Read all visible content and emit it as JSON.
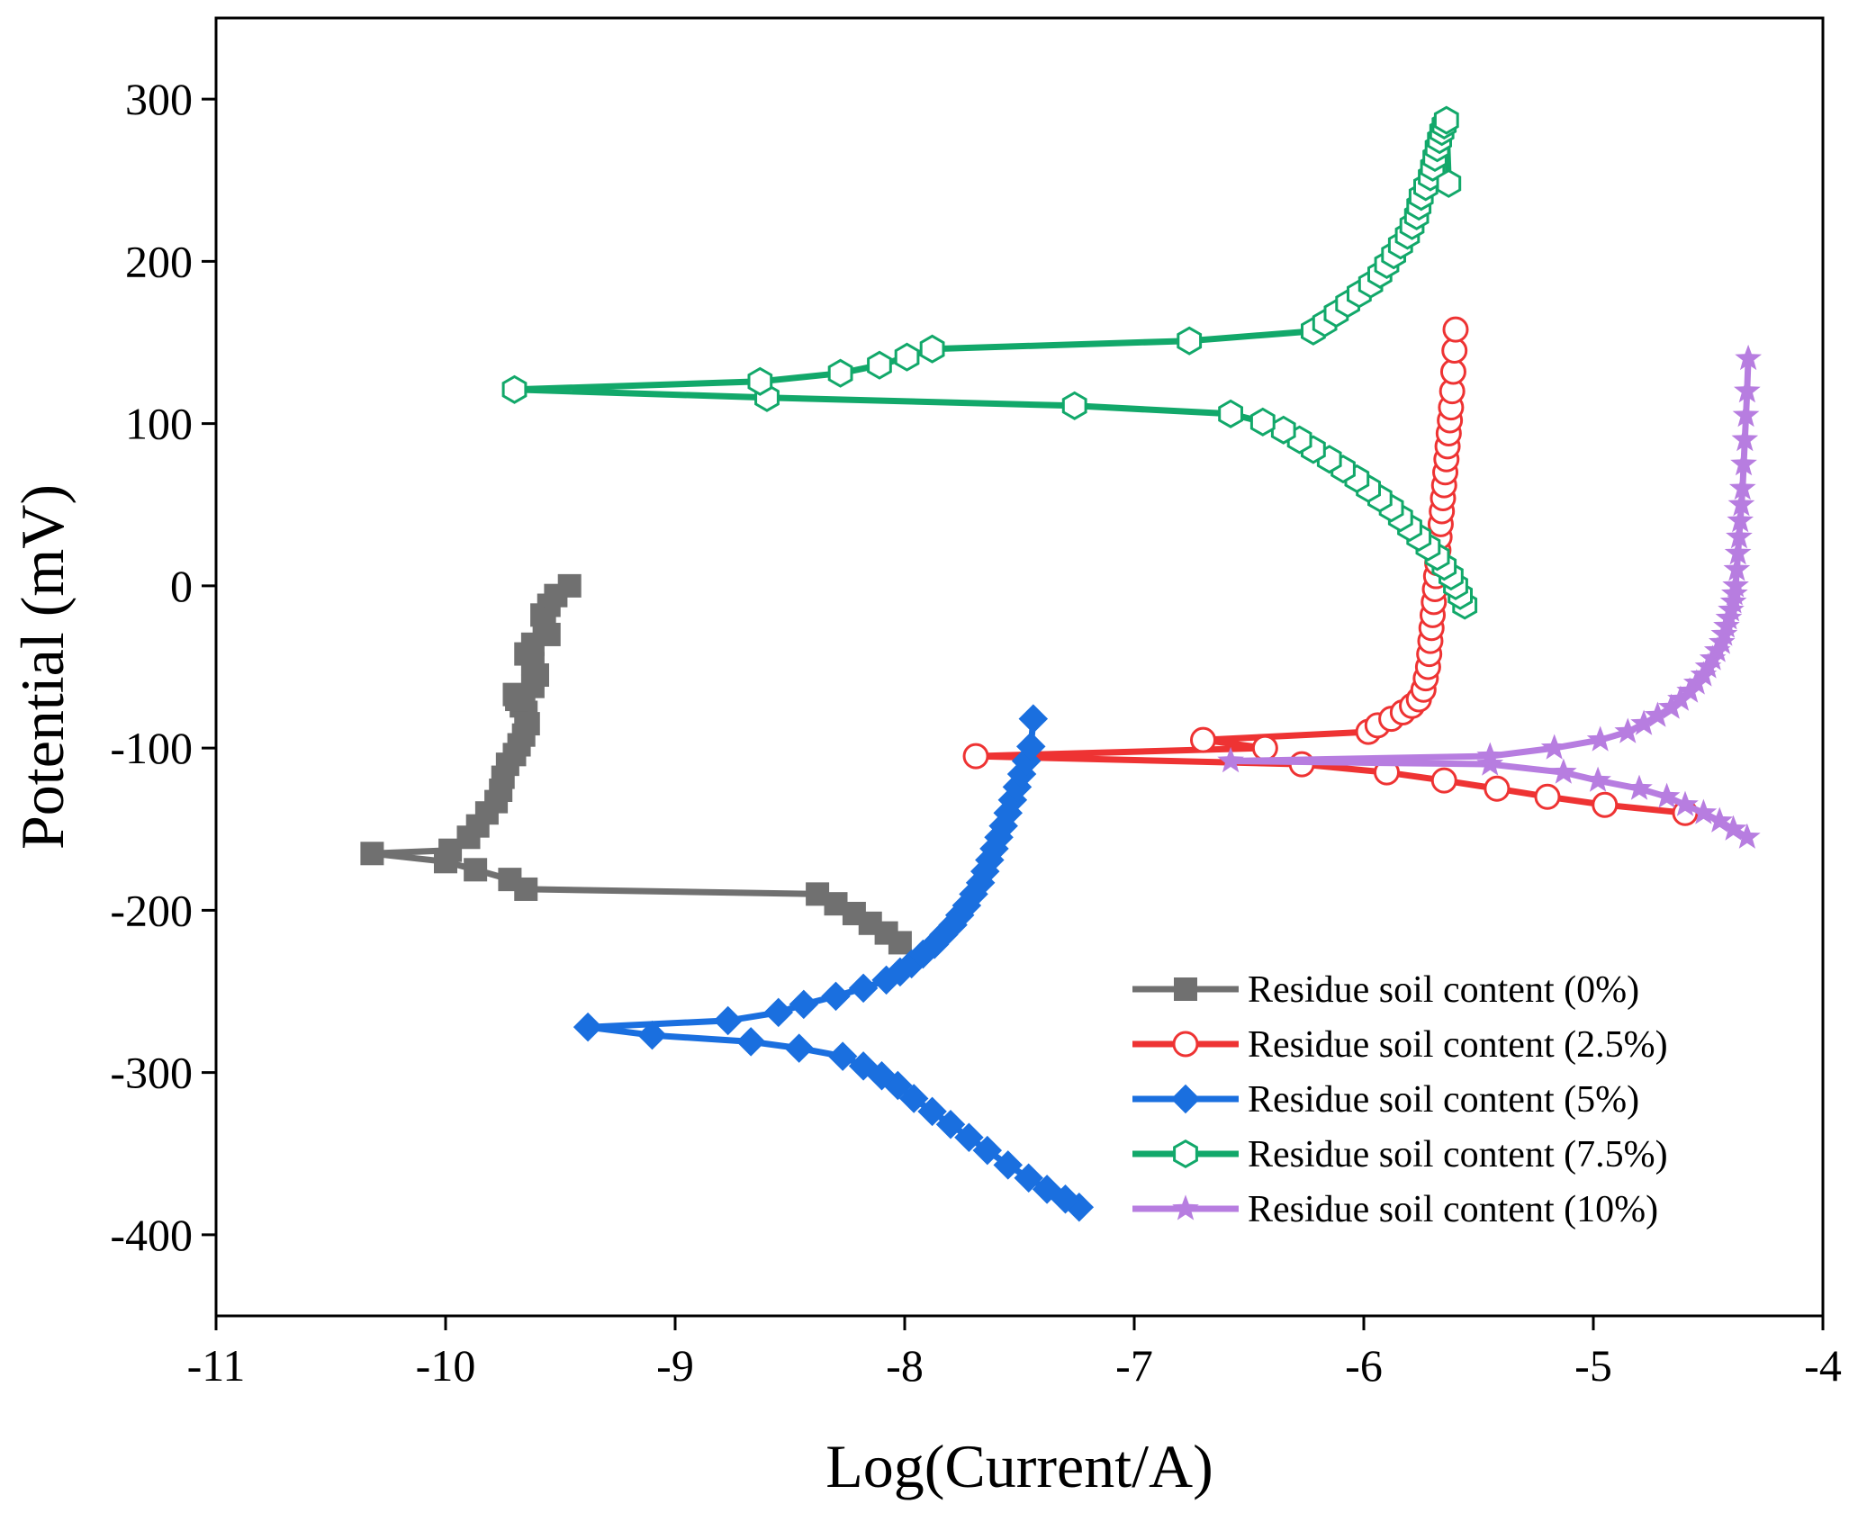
{
  "chart_data": {
    "type": "line",
    "title": "",
    "xlabel": "Log(Current/A)",
    "ylabel": "Potential (mV)",
    "xlim": [
      -11,
      -4
    ],
    "ylim": [
      -450,
      350
    ],
    "xticks": [
      -11,
      -10,
      -9,
      -8,
      -7,
      -6,
      -5,
      -4
    ],
    "yticks": [
      -400,
      -300,
      -200,
      -100,
      0,
      100,
      200,
      300
    ],
    "xtick_labels": [
      "-11",
      "-10",
      "-9",
      "-8",
      "-7",
      "-6",
      "-5",
      "-4"
    ],
    "ytick_labels": [
      "-400",
      "-300",
      "-200",
      "-100",
      "0",
      "100",
      "200",
      "300"
    ],
    "grid": false,
    "legend_position": "bottom-right",
    "series": [
      {
        "name": "Residue soil content (0%)",
        "color": "#707070",
        "marker": "square",
        "x": [
          -8.02,
          -8.08,
          -8.15,
          -8.22,
          -8.3,
          -8.38,
          -9.65,
          -9.72,
          -9.87,
          -10.0,
          -10.32,
          -9.98,
          -9.9,
          -9.86,
          -9.82,
          -9.78,
          -9.76,
          -9.75,
          -9.73,
          -9.7,
          -9.68,
          -9.66,
          -9.64,
          -9.65,
          -9.67,
          -9.69,
          -9.7,
          -9.66,
          -9.62,
          -9.6,
          -9.62,
          -9.65,
          -9.62,
          -9.55,
          -9.57,
          -9.58,
          -9.55,
          -9.52,
          -9.46
        ],
        "y": [
          -220,
          -214,
          -208,
          -202,
          -196,
          -190,
          -187,
          -181,
          -175,
          -170,
          -165,
          -163,
          -155,
          -148,
          -140,
          -133,
          -126,
          -118,
          -110,
          -104,
          -98,
          -92,
          -85,
          -78,
          -74,
          -70,
          -67,
          -70,
          -62,
          -55,
          -48,
          -42,
          -36,
          -30,
          -24,
          -18,
          -12,
          -6,
          0
        ]
      },
      {
        "name": "Residue soil content (2.5%)",
        "color": "#ee3333",
        "marker": "circle-open",
        "x": [
          -4.6,
          -4.95,
          -5.2,
          -5.42,
          -5.65,
          -5.9,
          -6.27,
          -7.69,
          -6.43,
          -6.7,
          -5.98,
          -5.94,
          -5.88,
          -5.83,
          -5.79,
          -5.76,
          -5.74,
          -5.73,
          -5.72,
          -5.715,
          -5.71,
          -5.705,
          -5.7,
          -5.695,
          -5.69,
          -5.685,
          -5.68,
          -5.675,
          -5.67,
          -5.665,
          -5.66,
          -5.655,
          -5.65,
          -5.645,
          -5.64,
          -5.635,
          -5.63,
          -5.625,
          -5.62,
          -5.615,
          -5.61,
          -5.605,
          -5.6
        ],
        "y": [
          -140,
          -135,
          -130,
          -125,
          -120,
          -115,
          -110,
          -105,
          -100,
          -95,
          -90,
          -86,
          -82,
          -78,
          -74,
          -70,
          -64,
          -57,
          -50,
          -42,
          -34,
          -26,
          -18,
          -10,
          -2,
          6,
          14,
          22,
          30,
          38,
          46,
          54,
          62,
          70,
          78,
          86,
          94,
          102,
          110,
          120,
          132,
          145,
          158
        ]
      },
      {
        "name": "Residue soil content (5%)",
        "color": "#1a6fdf",
        "marker": "diamond",
        "x": [
          -7.24,
          -7.3,
          -7.38,
          -7.46,
          -7.55,
          -7.64,
          -7.72,
          -7.8,
          -7.88,
          -7.96,
          -8.03,
          -8.1,
          -8.18,
          -8.27,
          -8.46,
          -8.67,
          -9.1,
          -9.38,
          -8.77,
          -8.55,
          -8.44,
          -8.3,
          -8.18,
          -8.08,
          -8.02,
          -7.97,
          -7.92,
          -7.87,
          -7.83,
          -7.79,
          -7.76,
          -7.73,
          -7.7,
          -7.67,
          -7.65,
          -7.63,
          -7.61,
          -7.59,
          -7.57,
          -7.55,
          -7.53,
          -7.51,
          -7.49,
          -7.47,
          -7.45,
          -7.44
        ],
        "y": [
          -383,
          -378,
          -372,
          -365,
          -357,
          -348,
          -340,
          -332,
          -324,
          -316,
          -308,
          -302,
          -296,
          -290,
          -285,
          -281,
          -277,
          -272,
          -268,
          -263,
          -258,
          -253,
          -248,
          -243,
          -238,
          -233,
          -227,
          -221,
          -215,
          -209,
          -203,
          -197,
          -190,
          -183,
          -176,
          -169,
          -162,
          -155,
          -148,
          -140,
          -132,
          -124,
          -116,
          -108,
          -99,
          -82
        ]
      },
      {
        "name": "Residue soil content (7.5%)",
        "color": "#12a86a",
        "marker": "hexagon-open",
        "x": [
          -5.56,
          -5.58,
          -5.6,
          -5.62,
          -5.65,
          -5.68,
          -5.72,
          -5.76,
          -5.8,
          -5.84,
          -5.88,
          -5.93,
          -5.98,
          -6.03,
          -6.09,
          -6.15,
          -6.22,
          -6.28,
          -6.35,
          -6.44,
          -6.58,
          -7.26,
          -8.6,
          -9.7,
          -8.63,
          -8.28,
          -8.11,
          -7.99,
          -7.88,
          -6.76,
          -6.22,
          -6.17,
          -6.12,
          -6.07,
          -6.02,
          -5.97,
          -5.93,
          -5.9,
          -5.87,
          -5.84,
          -5.81,
          -5.79,
          -5.77,
          -5.76,
          -5.75,
          -5.73,
          -5.71,
          -5.7,
          -5.69,
          -5.68,
          -5.67,
          -5.66,
          -5.65,
          -5.64,
          -5.63
        ],
        "y": [
          -12,
          -6,
          0,
          6,
          12,
          18,
          24,
          30,
          36,
          42,
          48,
          54,
          60,
          66,
          72,
          78,
          84,
          90,
          96,
          101,
          106,
          111,
          116,
          121,
          126,
          131,
          136,
          141,
          146,
          151,
          157,
          162,
          168,
          174,
          180,
          186,
          192,
          198,
          204,
          210,
          216,
          222,
          228,
          234,
          240,
          246,
          252,
          258,
          264,
          270,
          275,
          280,
          284,
          287,
          248
        ]
      },
      {
        "name": "Residue soil content (10%)",
        "color": "#b77de0",
        "marker": "star",
        "x": [
          -4.33,
          -4.39,
          -4.45,
          -4.52,
          -4.6,
          -4.68,
          -4.8,
          -4.98,
          -5.13,
          -5.45,
          -6.58,
          -5.45,
          -5.17,
          -4.97,
          -4.85,
          -4.78,
          -4.72,
          -4.66,
          -4.62,
          -4.58,
          -4.55,
          -4.52,
          -4.5,
          -4.48,
          -4.46,
          -4.44,
          -4.43,
          -4.42,
          -4.41,
          -4.4,
          -4.39,
          -4.385,
          -4.38,
          -4.375,
          -4.37,
          -4.365,
          -4.36,
          -4.355,
          -4.35,
          -4.345,
          -4.34,
          -4.335,
          -4.33,
          -4.325
        ],
        "y": [
          -155,
          -150,
          -145,
          -140,
          -135,
          -130,
          -125,
          -120,
          -115,
          -110,
          -108,
          -105,
          -100,
          -95,
          -90,
          -85,
          -80,
          -75,
          -70,
          -65,
          -60,
          -55,
          -50,
          -45,
          -40,
          -35,
          -30,
          -25,
          -20,
          -15,
          -10,
          -5,
          0,
          10,
          20,
          30,
          40,
          50,
          60,
          75,
          90,
          105,
          120,
          140
        ]
      }
    ]
  }
}
